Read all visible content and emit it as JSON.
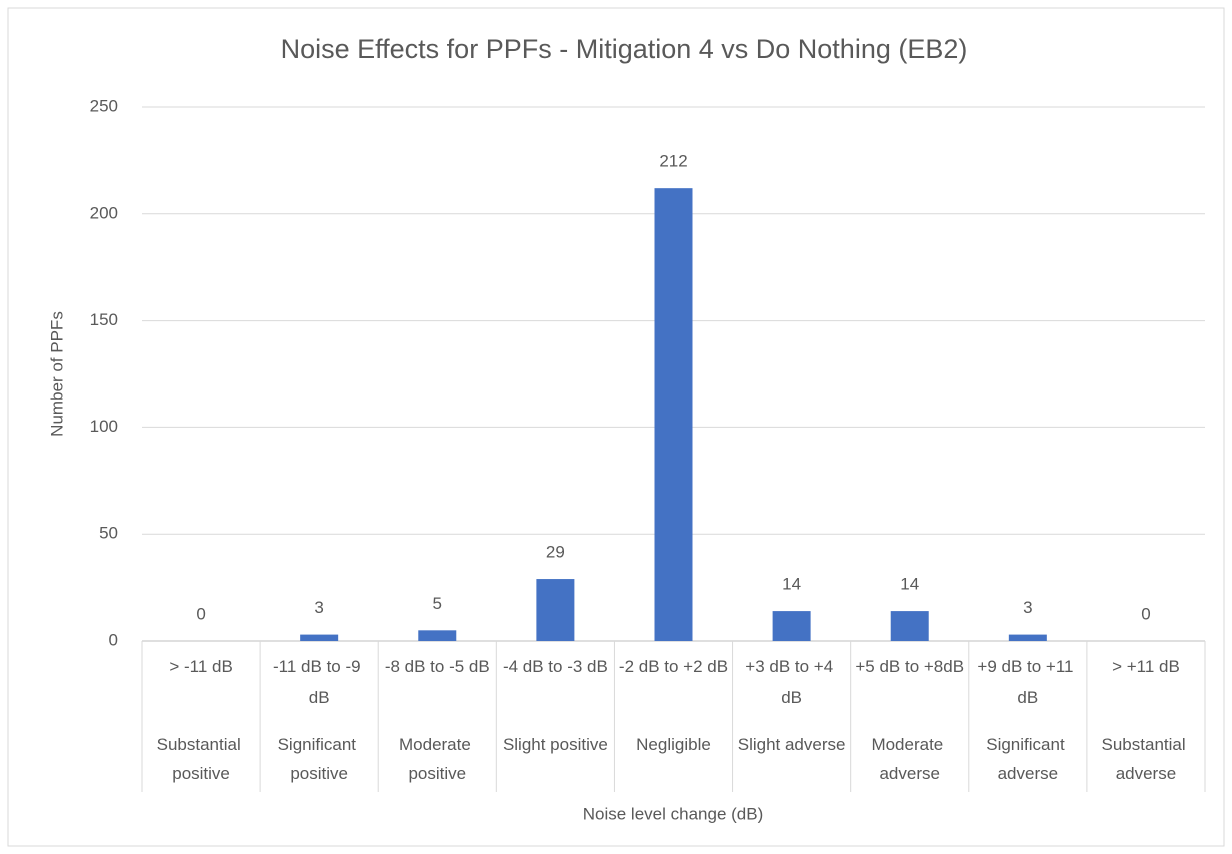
{
  "chart_data": {
    "type": "bar",
    "title": "Noise Effects for PPFs - Mitigation 4 vs Do Nothing (EB2)",
    "y_label": "Number of PPFs",
    "x_label": "Noise level change (dB)",
    "categories": [
      "> -11 dB",
      "-11 dB to -9 dB",
      "-8 dB to -5 dB",
      "-4 dB to -3 dB",
      "-2 dB to +2 dB",
      "+3 dB to +4 dB",
      "+5 dB to +8dB",
      "+9 dB to +11 dB",
      "> +11 dB"
    ],
    "category_groups": [
      "Substantial positive",
      "Significant positive",
      "Moderate positive",
      "Slight positive",
      "Negligible",
      "Slight adverse",
      "Moderate adverse",
      "Significant adverse",
      "Substantial adverse"
    ],
    "values": [
      0,
      3,
      5,
      29,
      212,
      14,
      14,
      3,
      0
    ],
    "color": "#4472c4",
    "ylim": [
      0,
      250
    ],
    "yticks": [
      0,
      50,
      100,
      150,
      200,
      250
    ],
    "grid": true
  }
}
